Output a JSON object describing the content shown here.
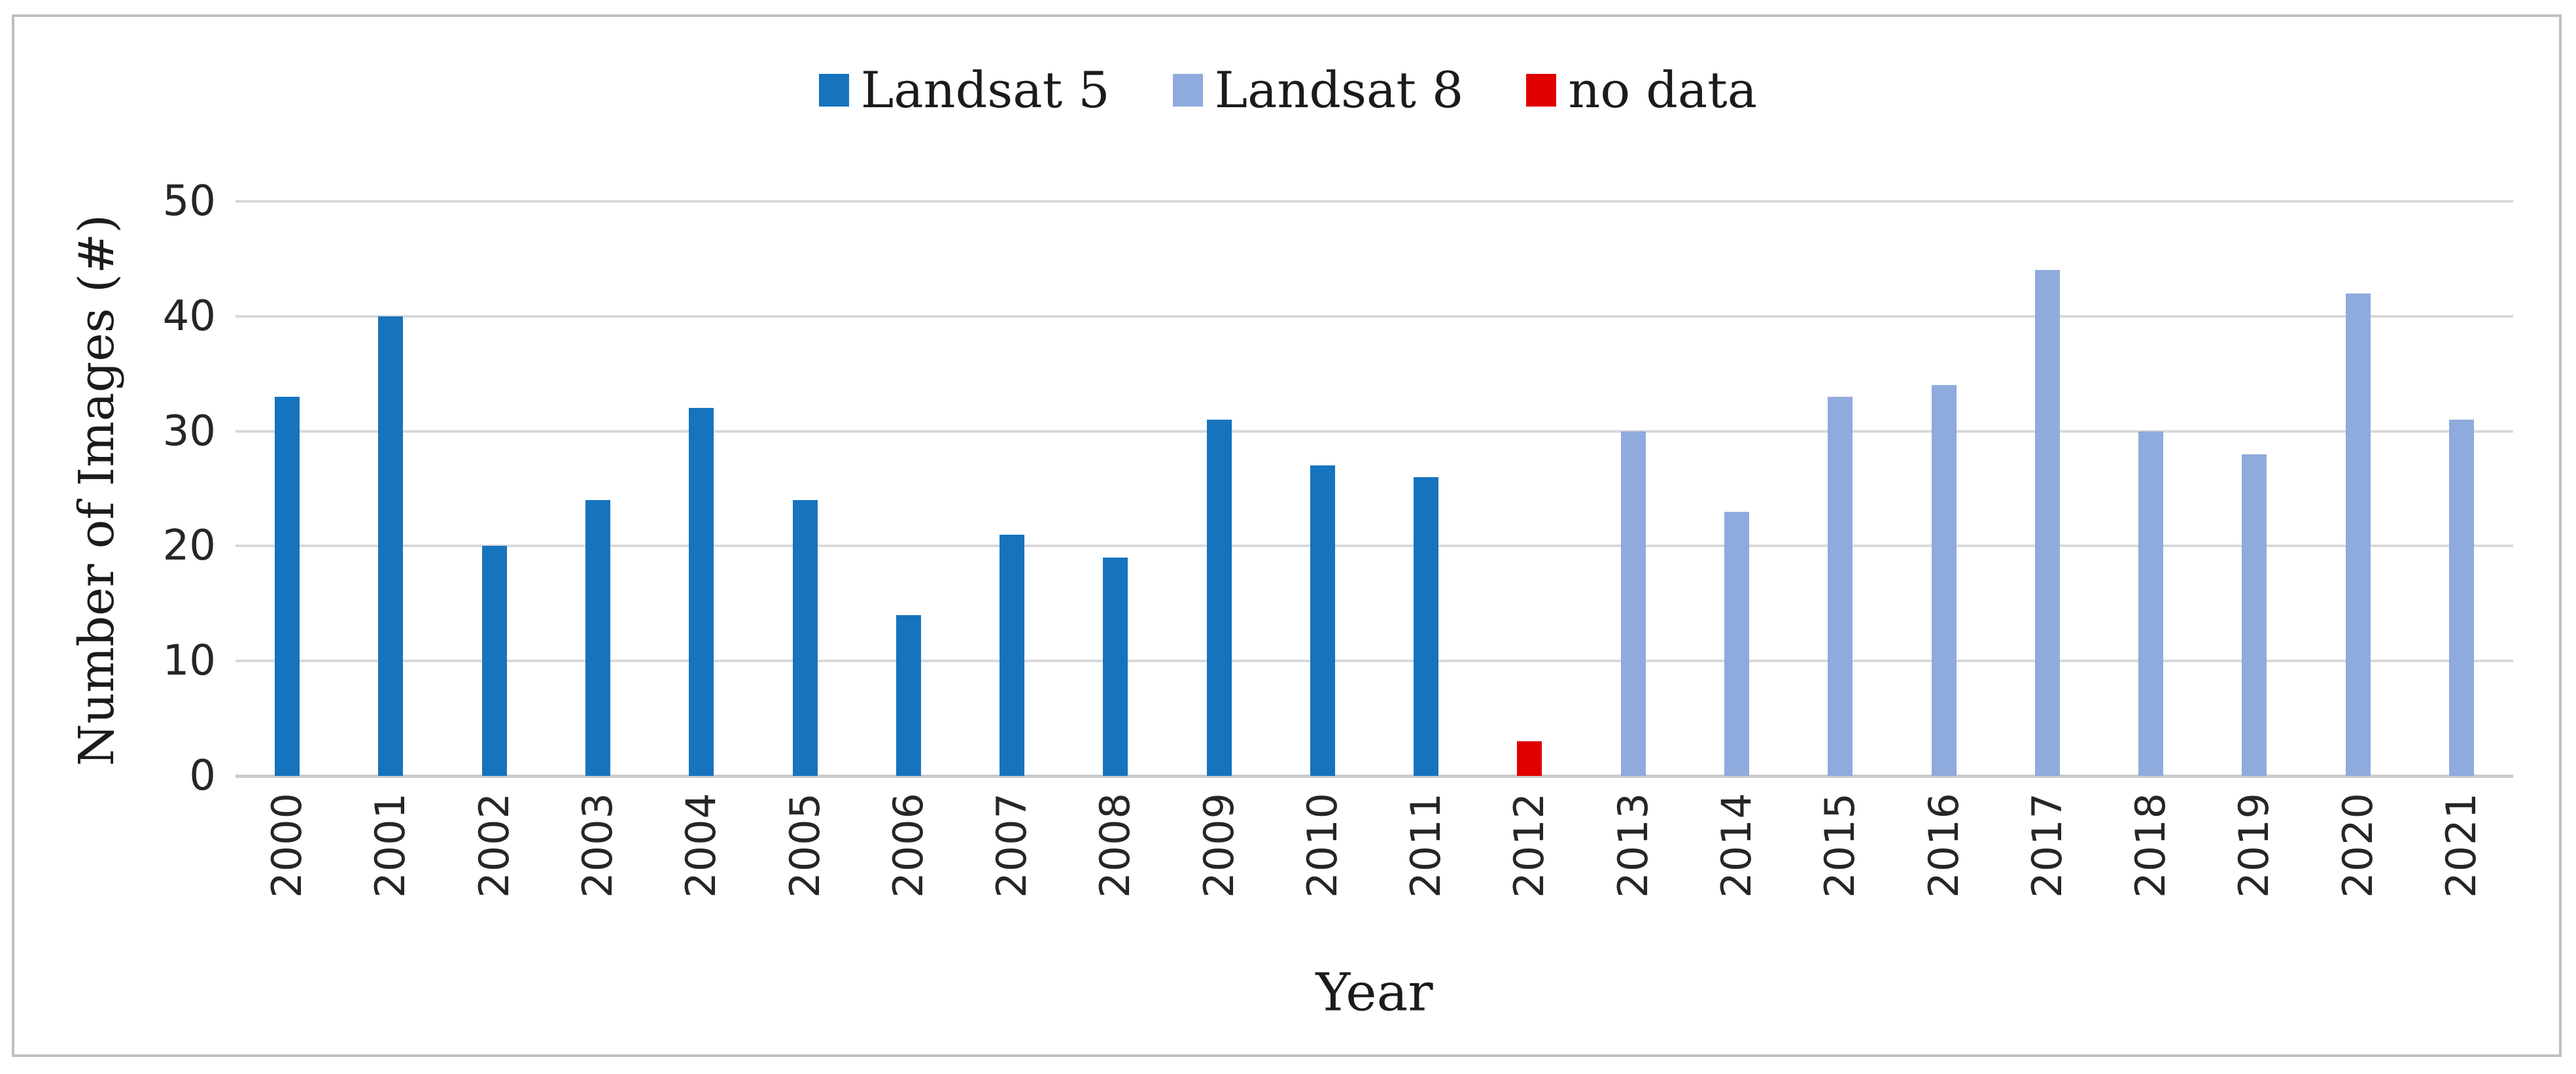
{
  "chart_data": {
    "type": "bar",
    "title": "",
    "xlabel": "Year",
    "ylabel": "Number of Images (#)",
    "ylim": [
      0,
      50
    ],
    "yticks": [
      0,
      10,
      20,
      30,
      40,
      50
    ],
    "grid": true,
    "legend_position": "top-center",
    "categories": [
      "2000",
      "2001",
      "2002",
      "2003",
      "2004",
      "2005",
      "2006",
      "2007",
      "2008",
      "2009",
      "2010",
      "2011",
      "2012",
      "2013",
      "2014",
      "2015",
      "2016",
      "2017",
      "2018",
      "2019",
      "2020",
      "2021"
    ],
    "values": [
      33,
      40,
      20,
      24,
      32,
      24,
      14,
      21,
      19,
      31,
      27,
      26,
      3,
      30,
      23,
      33,
      34,
      44,
      30,
      28,
      42,
      31
    ],
    "series_by_category": [
      "landsat5",
      "landsat5",
      "landsat5",
      "landsat5",
      "landsat5",
      "landsat5",
      "landsat5",
      "landsat5",
      "landsat5",
      "landsat5",
      "landsat5",
      "landsat5",
      "nodata",
      "landsat8",
      "landsat8",
      "landsat8",
      "landsat8",
      "landsat8",
      "landsat8",
      "landsat8",
      "landsat8",
      "landsat8"
    ],
    "series": [
      {
        "id": "landsat5",
        "name": "Landsat 5",
        "color": "#1673BE"
      },
      {
        "id": "landsat8",
        "name": "Landsat 8",
        "color": "#8FAADC"
      },
      {
        "id": "nodata",
        "name": "no data",
        "color": "#E00000"
      }
    ]
  },
  "colors": {
    "gridline": "#d9d9d9",
    "axis_line": "#c9c9c9",
    "frame_border": "#bfbfbf",
    "text": "#1b1b1b",
    "tick_text": "#262626",
    "background": "#ffffff"
  }
}
